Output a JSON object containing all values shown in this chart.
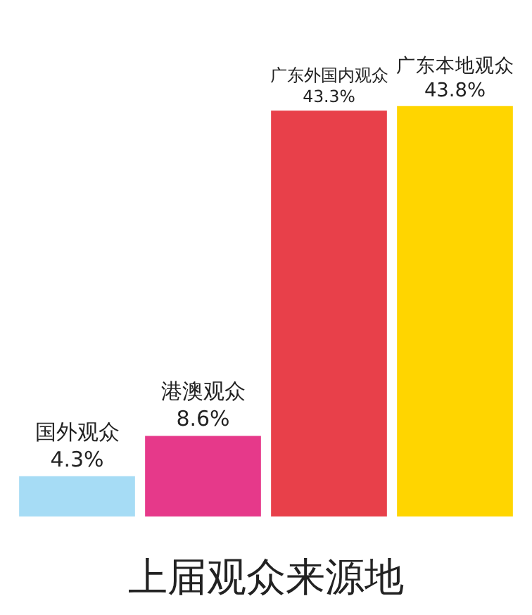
{
  "chart_data": {
    "type": "bar",
    "title": "上届观众来源地",
    "categories": [
      "国外观众",
      "港澳观众",
      "广东外国内观众",
      "广东本地观众"
    ],
    "values": [
      4.3,
      8.6,
      43.3,
      43.8
    ],
    "value_labels": [
      "4.3%",
      "8.6%",
      "43.3%",
      "43.8%"
    ],
    "colors": [
      "#a6dcf5",
      "#e6398a",
      "#e8404a",
      "#ffd500"
    ]
  }
}
